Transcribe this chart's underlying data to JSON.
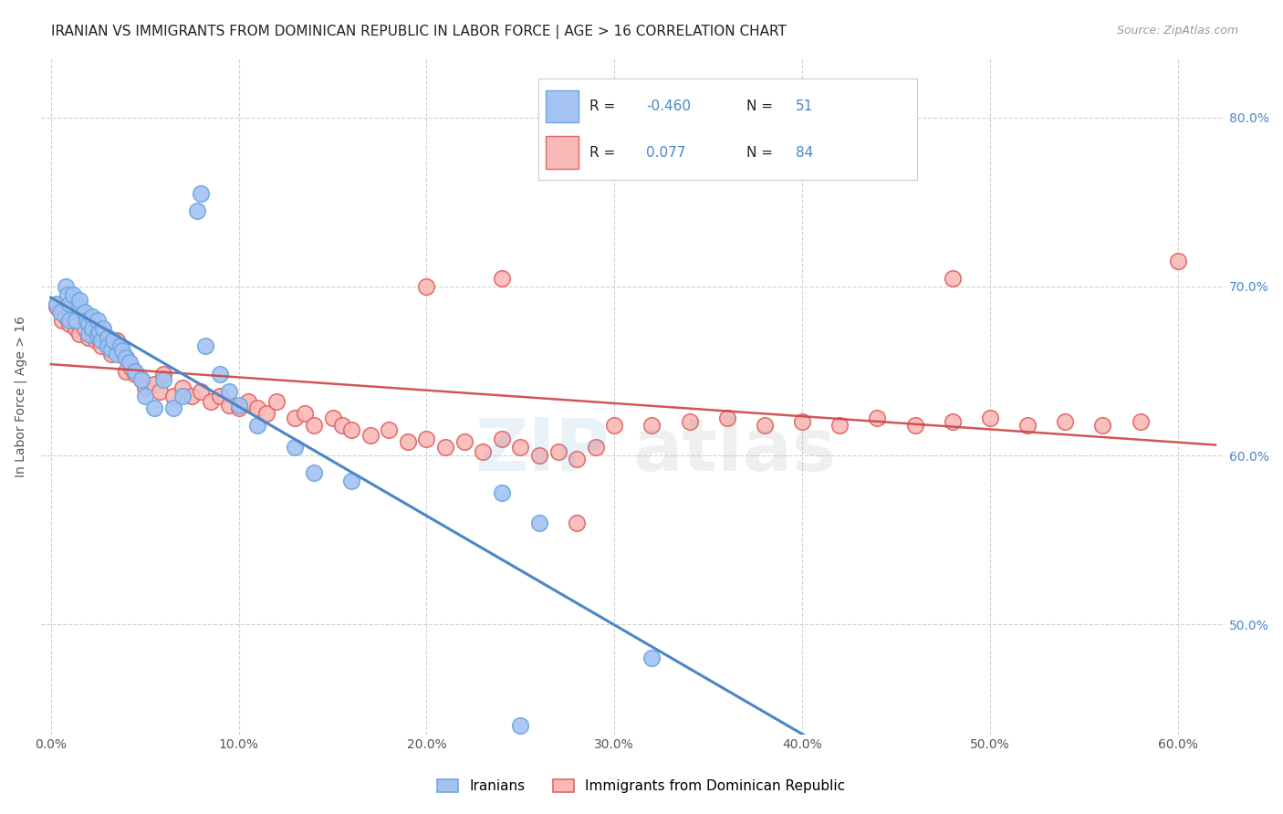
{
  "title": "IRANIAN VS IMMIGRANTS FROM DOMINICAN REPUBLIC IN LABOR FORCE | AGE > 16 CORRELATION CHART",
  "source": "Source: ZipAtlas.com",
  "ylabel": "In Labor Force | Age > 16",
  "xlabel_ticks": [
    "0.0%",
    "10.0%",
    "20.0%",
    "30.0%",
    "40.0%",
    "50.0%",
    "60.0%"
  ],
  "xlabel_vals": [
    0.0,
    0.1,
    0.2,
    0.3,
    0.4,
    0.5,
    0.6
  ],
  "ylabel_ticks_right": [
    "50.0%",
    "60.0%",
    "70.0%",
    "80.0%"
  ],
  "ylabel_vals_right": [
    0.5,
    0.6,
    0.7,
    0.8
  ],
  "xlim": [
    -0.005,
    0.625
  ],
  "ylim": [
    0.435,
    0.835
  ],
  "blue_scatter_color": "#a4c2f4",
  "blue_edge_color": "#6fa8dc",
  "pink_scatter_color": "#f9b9b7",
  "pink_edge_color": "#e06666",
  "blue_line_color": "#4a86c8",
  "pink_line_color": "#cc4444",
  "dashed_line_color": "#aaaaaa",
  "grid_color": "#cccccc",
  "legend_text_color": "#4a86c8",
  "legend_label_color": "#333333",
  "R_blue": -0.46,
  "N_blue": 51,
  "R_pink": 0.077,
  "N_pink": 84,
  "legend_label_blue": "Iranians",
  "legend_label_pink": "Immigrants from Dominican Republic",
  "title_fontsize": 11,
  "axis_label_fontsize": 10,
  "tick_fontsize": 10,
  "blue_scatter_x": [
    0.003,
    0.005,
    0.008,
    0.009,
    0.01,
    0.01,
    0.012,
    0.013,
    0.015,
    0.015,
    0.018,
    0.019,
    0.02,
    0.02,
    0.022,
    0.022,
    0.025,
    0.025,
    0.026,
    0.027,
    0.028,
    0.03,
    0.03,
    0.032,
    0.033,
    0.035,
    0.037,
    0.038,
    0.04,
    0.042,
    0.045,
    0.048,
    0.05,
    0.055,
    0.06,
    0.065,
    0.07,
    0.078,
    0.08,
    0.082,
    0.09,
    0.095,
    0.1,
    0.11,
    0.13,
    0.14,
    0.16,
    0.24,
    0.26,
    0.25,
    0.32
  ],
  "blue_scatter_y": [
    0.69,
    0.685,
    0.7,
    0.695,
    0.69,
    0.68,
    0.695,
    0.68,
    0.688,
    0.692,
    0.685,
    0.68,
    0.678,
    0.672,
    0.682,
    0.675,
    0.68,
    0.672,
    0.673,
    0.668,
    0.675,
    0.67,
    0.665,
    0.663,
    0.668,
    0.66,
    0.665,
    0.662,
    0.658,
    0.655,
    0.65,
    0.645,
    0.635,
    0.628,
    0.645,
    0.628,
    0.635,
    0.745,
    0.755,
    0.665,
    0.648,
    0.638,
    0.63,
    0.618,
    0.605,
    0.59,
    0.585,
    0.578,
    0.56,
    0.44,
    0.48
  ],
  "pink_scatter_x": [
    0.003,
    0.006,
    0.008,
    0.01,
    0.01,
    0.012,
    0.013,
    0.015,
    0.015,
    0.018,
    0.02,
    0.02,
    0.022,
    0.024,
    0.025,
    0.025,
    0.027,
    0.028,
    0.03,
    0.03,
    0.032,
    0.035,
    0.036,
    0.038,
    0.04,
    0.04,
    0.043,
    0.045,
    0.048,
    0.05,
    0.055,
    0.058,
    0.06,
    0.065,
    0.07,
    0.075,
    0.08,
    0.085,
    0.09,
    0.095,
    0.1,
    0.105,
    0.11,
    0.115,
    0.12,
    0.13,
    0.135,
    0.14,
    0.15,
    0.155,
    0.16,
    0.17,
    0.18,
    0.19,
    0.2,
    0.21,
    0.22,
    0.23,
    0.24,
    0.25,
    0.26,
    0.27,
    0.28,
    0.29,
    0.3,
    0.32,
    0.34,
    0.36,
    0.38,
    0.4,
    0.42,
    0.44,
    0.46,
    0.48,
    0.5,
    0.52,
    0.54,
    0.56,
    0.58,
    0.6,
    0.2,
    0.24,
    0.28,
    0.48
  ],
  "pink_scatter_y": [
    0.688,
    0.68,
    0.682,
    0.678,
    0.685,
    0.68,
    0.675,
    0.678,
    0.672,
    0.675,
    0.67,
    0.678,
    0.672,
    0.668,
    0.67,
    0.675,
    0.665,
    0.672,
    0.665,
    0.67,
    0.66,
    0.668,
    0.66,
    0.66,
    0.658,
    0.65,
    0.652,
    0.648,
    0.645,
    0.64,
    0.642,
    0.638,
    0.648,
    0.635,
    0.64,
    0.635,
    0.638,
    0.632,
    0.635,
    0.63,
    0.628,
    0.632,
    0.628,
    0.625,
    0.632,
    0.622,
    0.625,
    0.618,
    0.622,
    0.618,
    0.615,
    0.612,
    0.615,
    0.608,
    0.61,
    0.605,
    0.608,
    0.602,
    0.61,
    0.605,
    0.6,
    0.602,
    0.598,
    0.605,
    0.618,
    0.618,
    0.62,
    0.622,
    0.618,
    0.62,
    0.618,
    0.622,
    0.618,
    0.62,
    0.622,
    0.618,
    0.62,
    0.618,
    0.62,
    0.715,
    0.7,
    0.705,
    0.56,
    0.705
  ]
}
